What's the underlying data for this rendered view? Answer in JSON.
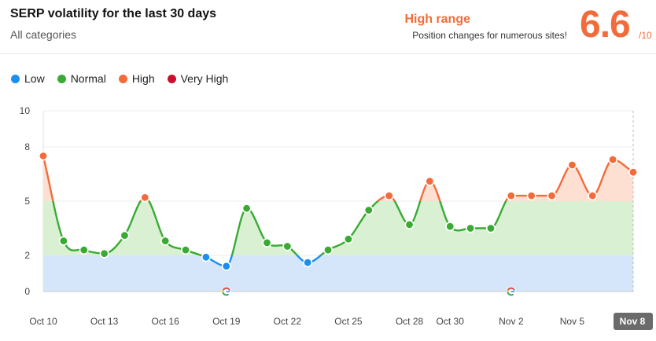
{
  "header": {
    "title": "SERP volatility for the last 30 days",
    "subtitle": "All categories",
    "range_title": "High range",
    "range_desc": "Position changes for numerous sites!",
    "score": "6.6",
    "score_denom": "/10"
  },
  "legend": [
    {
      "label": "Low",
      "color": "#1a8ff0"
    },
    {
      "label": "Normal",
      "color": "#3aaa35"
    },
    {
      "label": "High",
      "color": "#f26c3b"
    },
    {
      "label": "Very High",
      "color": "#c8102e"
    }
  ],
  "chart_data": {
    "type": "area",
    "ylim": [
      0,
      10
    ],
    "yticks": [
      0,
      2,
      5,
      8,
      10
    ],
    "bands": [
      {
        "label": "Low",
        "from": 0,
        "to": 2,
        "color": "#d5e6fb"
      },
      {
        "label": "Normal",
        "from": 2,
        "to": 5,
        "color": "#daf0d3"
      },
      {
        "label": "High",
        "from": 5,
        "to": 8,
        "color": "#fde0d2"
      }
    ],
    "x": [
      "Oct 10",
      "Oct 11",
      "Oct 12",
      "Oct 13",
      "Oct 14",
      "Oct 15",
      "Oct 16",
      "Oct 17",
      "Oct 18",
      "Oct 19",
      "Oct 20",
      "Oct 21",
      "Oct 22",
      "Oct 23",
      "Oct 24",
      "Oct 25",
      "Oct 26",
      "Oct 27",
      "Oct 28",
      "Oct 29",
      "Oct 30",
      "Oct 31",
      "Nov 1",
      "Nov 2",
      "Nov 3",
      "Nov 4",
      "Nov 5",
      "Nov 6",
      "Nov 7",
      "Nov 8"
    ],
    "values": [
      7.5,
      2.8,
      2.3,
      2.1,
      3.1,
      5.2,
      2.8,
      2.3,
      1.9,
      1.4,
      4.6,
      2.7,
      2.5,
      1.6,
      2.3,
      2.9,
      4.5,
      5.3,
      3.7,
      6.1,
      3.6,
      3.5,
      3.5,
      5.3,
      5.3,
      5.3,
      7.0,
      5.3,
      7.3,
      6.6
    ],
    "xtick_labels": [
      {
        "index": 0,
        "label": "Oct 10"
      },
      {
        "index": 3,
        "label": "Oct 13"
      },
      {
        "index": 6,
        "label": "Oct 16"
      },
      {
        "index": 9,
        "label": "Oct 19"
      },
      {
        "index": 12,
        "label": "Oct 22"
      },
      {
        "index": 15,
        "label": "Oct 25"
      },
      {
        "index": 18,
        "label": "Oct 28"
      },
      {
        "index": 20,
        "label": "Oct 30"
      },
      {
        "index": 23,
        "label": "Nov 2"
      },
      {
        "index": 26,
        "label": "Nov 5"
      },
      {
        "index": 29,
        "label": "Nov 8",
        "highlighted": true
      }
    ],
    "google_markers": [
      9,
      23
    ]
  }
}
